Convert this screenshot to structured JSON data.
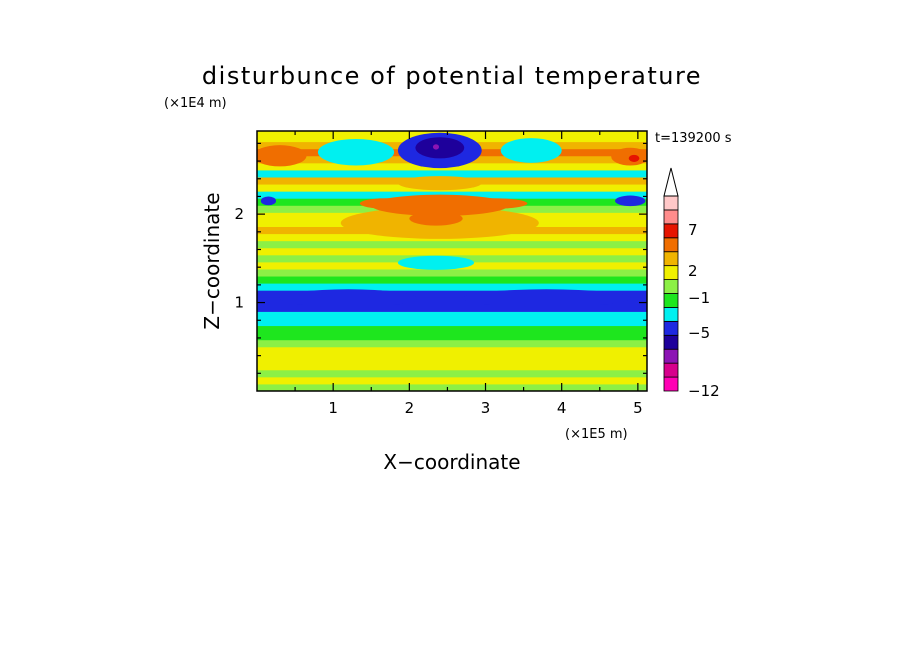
{
  "chart_data": {
    "type": "heatmap",
    "title": "disturbunce of potential temperature",
    "xlabel": "X−coordinate",
    "ylabel": "Z−coordinate",
    "x_unit": "(×1E5 m)",
    "y_unit": "(×1E4 m)",
    "time_label": "t=139200 s",
    "xlim": [
      0,
      5.12
    ],
    "ylim": [
      0,
      2.94
    ],
    "x_ticks": [
      "1",
      "2",
      "3",
      "4",
      "5"
    ],
    "y_ticks": [
      "1",
      "2"
    ],
    "colorbar_labels": [
      "7",
      "2",
      "−1",
      "−5",
      "−12"
    ],
    "colorbar_colors": [
      "#ff00b4",
      "#d7008c",
      "#8c14b4",
      "#1e009b",
      "#1e28e1",
      "#00f0f0",
      "#1ee61e",
      "#8cf046",
      "#f0f000",
      "#f0b400",
      "#f06e00",
      "#e61400",
      "#ff8c8c",
      "#ffc8c8"
    ],
    "bands": [
      {
        "z": 0.04,
        "color": "#8cf046"
      },
      {
        "z": 0.12,
        "color": "#f0f000"
      },
      {
        "z": 0.2,
        "color": "#8cf046"
      },
      {
        "z": 0.28,
        "color": "#f0f000"
      },
      {
        "z": 0.38,
        "color": "#f0f000"
      },
      {
        "z": 0.46,
        "color": "#f0f000"
      },
      {
        "z": 0.54,
        "color": "#8cf046"
      },
      {
        "z": 0.62,
        "color": "#1ee61e"
      },
      {
        "z": 0.7,
        "color": "#1ee61e"
      },
      {
        "z": 0.78,
        "color": "#00f0f0"
      },
      {
        "z": 0.86,
        "color": "#00f0f0"
      },
      {
        "z": 0.94,
        "color": "#1e28e1"
      },
      {
        "z": 1.02,
        "color": "#1e28e1"
      },
      {
        "z": 1.1,
        "color": "#1e28e1"
      },
      {
        "z": 1.18,
        "color": "#00f0f0"
      },
      {
        "z": 1.26,
        "color": "#1ee61e"
      },
      {
        "z": 1.34,
        "color": "#8cf046"
      },
      {
        "z": 1.42,
        "color": "#f0f000"
      },
      {
        "z": 1.5,
        "color": "#8cf046"
      },
      {
        "z": 1.58,
        "color": "#f0f000"
      },
      {
        "z": 1.66,
        "color": "#8cf046"
      },
      {
        "z": 1.74,
        "color": "#f0f000"
      },
      {
        "z": 1.82,
        "color": "#f0b400"
      },
      {
        "z": 1.9,
        "color": "#f0f000"
      },
      {
        "z": 1.98,
        "color": "#f0f000"
      },
      {
        "z": 2.06,
        "color": "#8cf046"
      },
      {
        "z": 2.14,
        "color": "#1ee61e"
      },
      {
        "z": 2.22,
        "color": "#00f0f0"
      },
      {
        "z": 2.3,
        "color": "#f0f000"
      },
      {
        "z": 2.38,
        "color": "#f0b400"
      },
      {
        "z": 2.46,
        "color": "#00f0f0"
      },
      {
        "z": 2.54,
        "color": "#f0f000"
      },
      {
        "z": 2.62,
        "color": "#f0b400"
      },
      {
        "z": 2.7,
        "color": "#f06e00"
      },
      {
        "z": 2.78,
        "color": "#f0b400"
      },
      {
        "z": 2.86,
        "color": "#f0f000"
      },
      {
        "z": 2.94,
        "color": "#f0f000"
      }
    ],
    "features": [
      {
        "x": 1.2,
        "z": 1.05,
        "rx": 0.9,
        "rz": 0.1,
        "color": "#1e28e1"
      },
      {
        "x": 3.8,
        "z": 1.05,
        "rx": 1.1,
        "rz": 0.1,
        "color": "#1e28e1"
      },
      {
        "x": 2.4,
        "z": 1.9,
        "rx": 1.3,
        "rz": 0.18,
        "color": "#f0b400"
      },
      {
        "x": 2.4,
        "z": 2.1,
        "rx": 0.9,
        "rz": 0.12,
        "color": "#f06e00"
      },
      {
        "x": 2.35,
        "z": 1.95,
        "rx": 0.35,
        "rz": 0.08,
        "color": "#f06e00"
      },
      {
        "x": 1.7,
        "z": 2.12,
        "rx": 0.35,
        "rz": 0.06,
        "color": "#f06e00"
      },
      {
        "x": 3.1,
        "z": 2.12,
        "rx": 0.45,
        "rz": 0.06,
        "color": "#f06e00"
      },
      {
        "x": 2.4,
        "z": 2.35,
        "rx": 0.55,
        "rz": 0.08,
        "color": "#f0b400"
      },
      {
        "x": 2.35,
        "z": 1.45,
        "rx": 0.5,
        "rz": 0.08,
        "color": "#00f0f0"
      },
      {
        "x": 2.4,
        "z": 2.72,
        "rx": 0.55,
        "rz": 0.2,
        "color": "#1e28e1"
      },
      {
        "x": 2.4,
        "z": 2.75,
        "rx": 0.32,
        "rz": 0.12,
        "color": "#1e009b"
      },
      {
        "x": 2.35,
        "z": 2.76,
        "rx": 0.04,
        "rz": 0.03,
        "color": "#8c14b4"
      },
      {
        "x": 0.3,
        "z": 2.66,
        "rx": 0.35,
        "rz": 0.12,
        "color": "#f06e00"
      },
      {
        "x": 4.9,
        "z": 2.65,
        "rx": 0.25,
        "rz": 0.1,
        "color": "#f06e00"
      },
      {
        "x": 4.95,
        "z": 2.63,
        "rx": 0.07,
        "rz": 0.04,
        "color": "#e61400"
      },
      {
        "x": 1.3,
        "z": 2.7,
        "rx": 0.5,
        "rz": 0.15,
        "color": "#00f0f0"
      },
      {
        "x": 3.6,
        "z": 2.72,
        "rx": 0.4,
        "rz": 0.14,
        "color": "#00f0f0"
      },
      {
        "x": 0.15,
        "z": 2.15,
        "rx": 0.1,
        "rz": 0.05,
        "color": "#1e28e1"
      },
      {
        "x": 4.9,
        "z": 2.15,
        "rx": 0.2,
        "rz": 0.06,
        "color": "#1e28e1"
      },
      {
        "x": 2.8,
        "z": 0.35,
        "rx": 2.0,
        "rz": 0.08,
        "color": "#f0f000"
      }
    ]
  }
}
